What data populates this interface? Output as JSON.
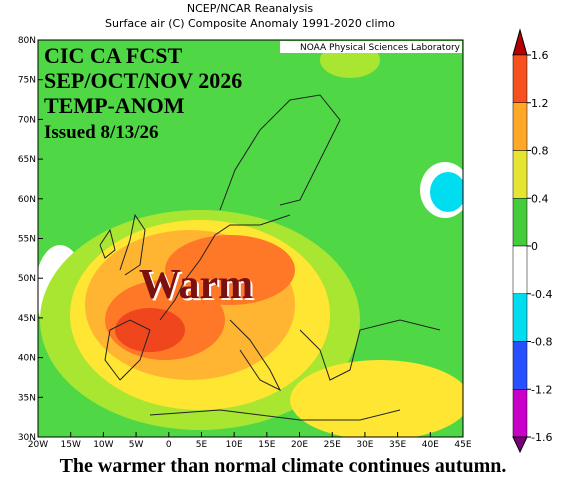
{
  "header": {
    "title": "NCEP/NCAR Reanalysis",
    "subtitle": "Surface air (C) Composite Anomaly 1991-2020 climo"
  },
  "credit": "NOAA Physical Sciences Laboratory",
  "overlay": {
    "lines": [
      "CIC CA FCST",
      "SEP/OCT/NOV 2026",
      "TEMP-ANOM",
      "Issued 8/13/26"
    ],
    "label": "Warm"
  },
  "map": {
    "lat_labels": [
      "80N",
      "75N",
      "70N",
      "65N",
      "60N",
      "55N",
      "50N",
      "45N",
      "40N",
      "35N",
      "30N"
    ],
    "lon_labels": [
      "20W",
      "15W",
      "10W",
      "5W",
      "0",
      "5E",
      "10E",
      "15E",
      "20E",
      "25E",
      "30E",
      "35E",
      "40E",
      "45E"
    ]
  },
  "colorbar": {
    "ticks": [
      1.6,
      1.2,
      0.8,
      0.4,
      0,
      -0.4,
      -0.8,
      -1.2,
      -1.6
    ],
    "colors": [
      "#b40000",
      "#f5501e",
      "#ffa828",
      "#e6e632",
      "#44cc3a",
      "#ffffff",
      "#00dcf0",
      "#2850ff",
      "#c800c8",
      "#780078"
    ]
  },
  "caption": "The warmer than normal climate continues autumn."
}
